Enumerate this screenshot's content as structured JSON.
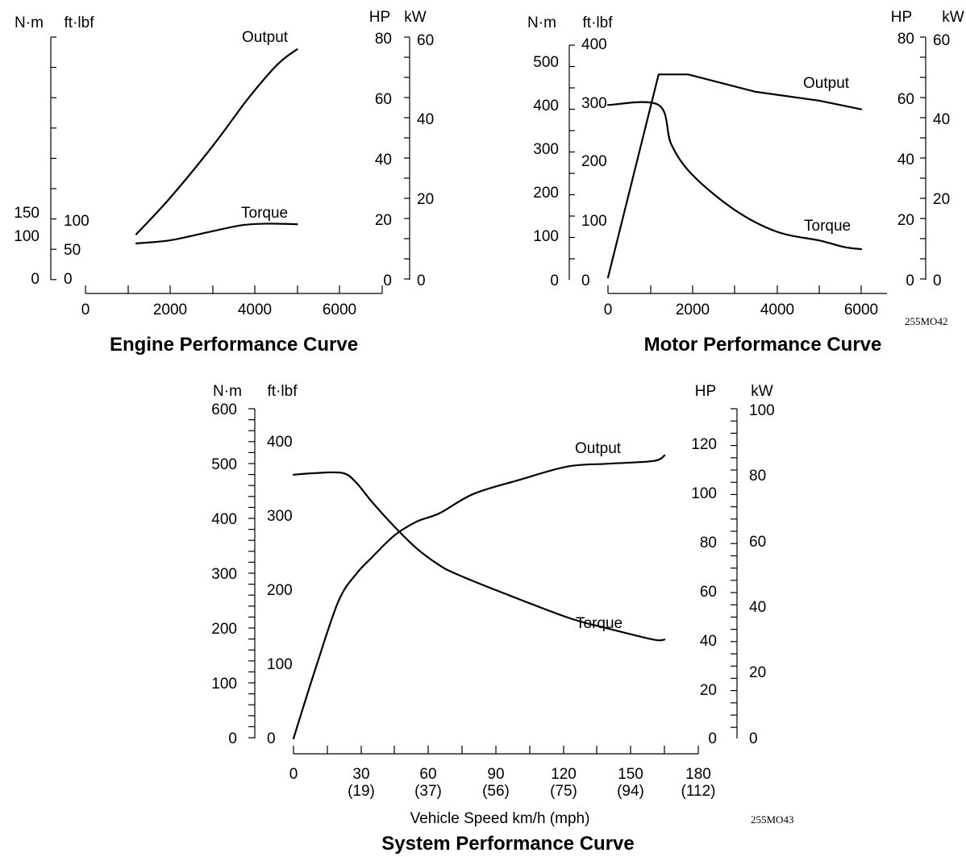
{
  "figure_codes": [
    "255MO42",
    "255MO43"
  ],
  "chart_data": [
    {
      "type": "line",
      "title": "Engine Performance Curve",
      "xlabel": "",
      "x_ticks": [
        "0",
        "2000",
        "4000",
        "6000"
      ],
      "xlim": [
        0,
        7000
      ],
      "axes": {
        "nm": {
          "label": "N·m",
          "ticks": [
            "0",
            "100",
            "150"
          ]
        },
        "ftlb": {
          "label": "ft·lbf",
          "ticks": [
            "0",
            "50",
            "100"
          ]
        },
        "hp": {
          "label": "HP",
          "ticks": [
            "0",
            "20",
            "40",
            "60",
            "80"
          ],
          "range": [
            0,
            80
          ]
        },
        "kw": {
          "label": "kW",
          "ticks": [
            "0",
            "20",
            "40",
            "60"
          ]
        }
      },
      "series": [
        {
          "name": "Output",
          "units": "HP",
          "x": [
            1200,
            2000,
            3000,
            3800,
            4400,
            4700,
            5000
          ],
          "y": [
            15,
            27,
            44,
            59,
            69,
            73,
            76
          ]
        },
        {
          "name": "Torque",
          "units": "HP",
          "x": [
            1200,
            2000,
            3000,
            3700,
            4300,
            5000
          ],
          "y": [
            12,
            13,
            16,
            18,
            18.5,
            18.3
          ]
        }
      ]
    },
    {
      "type": "line",
      "title": "Motor Performance Curve",
      "xlabel": "",
      "x_ticks": [
        "0",
        "2000",
        "4000",
        "6000"
      ],
      "xlim": [
        0,
        6600
      ],
      "axes": {
        "nm": {
          "label": "N·m",
          "ticks": [
            "0",
            "100",
            "200",
            "300",
            "400",
            "500"
          ]
        },
        "ftlb": {
          "label": "ft·lbf",
          "ticks": [
            "0",
            "100",
            "200",
            "300",
            "400"
          ]
        },
        "hp": {
          "label": "HP",
          "ticks": [
            "0",
            "20",
            "40",
            "60",
            "80"
          ],
          "range": [
            0,
            80
          ]
        },
        "kw": {
          "label": "kW",
          "ticks": [
            "0",
            "20",
            "40",
            "60"
          ]
        }
      },
      "series": [
        {
          "name": "Output",
          "units": "N·m",
          "x": [
            0,
            1200,
            1900,
            2500,
            3500,
            5000,
            6000
          ],
          "y": [
            5,
            470,
            470,
            455,
            430,
            410,
            390
          ]
        },
        {
          "name": "Torque",
          "units": "N·m",
          "x": [
            0,
            1200,
            1500,
            2000,
            3000,
            4000,
            5000,
            5600,
            6000
          ],
          "y": [
            400,
            400,
            310,
            240,
            160,
            110,
            90,
            75,
            70
          ]
        }
      ]
    },
    {
      "type": "line",
      "title": "System Performance Curve",
      "xlabel": "Vehicle Speed km/h (mph)",
      "x_ticks": [
        "0",
        "30",
        "60",
        "90",
        "120",
        "150",
        "180"
      ],
      "x_ticks_mph": [
        "(19)",
        "(37)",
        "(56)",
        "(75)",
        "(94)",
        "(112)"
      ],
      "xlim": [
        0,
        180
      ],
      "axes": {
        "nm": {
          "label": "N·m",
          "ticks": [
            "0",
            "100",
            "200",
            "300",
            "400",
            "500",
            "600"
          ],
          "range": [
            0,
            600
          ]
        },
        "ftlb": {
          "label": "ft·lbf",
          "ticks": [
            "0",
            "100",
            "200",
            "300",
            "400"
          ]
        },
        "hp": {
          "label": "HP",
          "ticks": [
            "0",
            "20",
            "40",
            "60",
            "80",
            "100",
            "120"
          ]
        },
        "kw": {
          "label": "kW",
          "ticks": [
            "0",
            "20",
            "40",
            "60",
            "80",
            "100"
          ]
        }
      },
      "series": [
        {
          "name": "Output",
          "units": "N·m",
          "x": [
            0,
            10,
            20,
            28,
            35,
            45,
            55,
            65,
            80,
            100,
            122,
            140,
            160,
            165
          ],
          "y": [
            0,
            130,
            250,
            300,
            330,
            370,
            395,
            410,
            445,
            470,
            495,
            500,
            505,
            515
          ]
        },
        {
          "name": "Torque",
          "units": "N·m",
          "x": [
            0,
            10,
            22,
            28,
            35,
            45,
            55,
            65,
            72,
            90,
            122,
            140,
            160,
            165
          ],
          "y": [
            480,
            483,
            483,
            465,
            430,
            385,
            345,
            315,
            300,
            270,
            220,
            200,
            180,
            180
          ]
        }
      ]
    }
  ]
}
